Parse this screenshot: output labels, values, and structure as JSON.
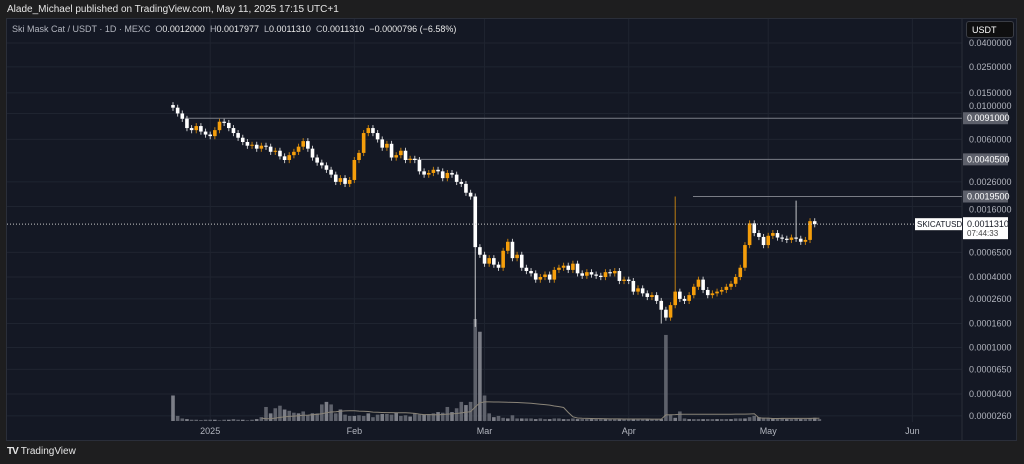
{
  "publisher_line": "Alade_Michael published on TradingView.com, May 11, 2025 17:15 UTC+1",
  "legend": {
    "symbol": "Ski Mask Cat / USDT · 1D · MEXC",
    "o_label": "O",
    "o": "0.0012000",
    "h_label": "H",
    "h": "0.0017977",
    "l_label": "L",
    "l": "0.0011310",
    "c_label": "C",
    "c": "0.0011310",
    "change": "−0.0000796 (−6.58%)"
  },
  "currency_button": "USDT",
  "footer_brand": "TradingView",
  "colors": {
    "up": "#f59e0b",
    "down": "#ffffff",
    "background": "#141824",
    "grid": "#1f2430"
  },
  "chart_data": {
    "type": "candlestick",
    "scale": "log",
    "start_date": "2024-12-24",
    "interval": "1D",
    "closes": [
      0.0112,
      0.01,
      0.009,
      0.0075,
      0.0072,
      0.0078,
      0.007,
      0.0066,
      0.0064,
      0.0072,
      0.0085,
      0.0083,
      0.0075,
      0.0068,
      0.0062,
      0.0057,
      0.0053,
      0.0054,
      0.005,
      0.0053,
      0.0052,
      0.0047,
      0.0048,
      0.0043,
      0.004,
      0.0044,
      0.0047,
      0.0052,
      0.0058,
      0.005,
      0.0042,
      0.0038,
      0.0036,
      0.0033,
      0.003,
      0.0026,
      0.0028,
      0.0025,
      0.0027,
      0.004,
      0.0046,
      0.0068,
      0.0075,
      0.0068,
      0.006,
      0.0051,
      0.0055,
      0.0042,
      0.0044,
      0.0048,
      0.004,
      0.0041,
      0.004,
      0.0032,
      0.003,
      0.0031,
      0.0033,
      0.0032,
      0.0028,
      0.0031,
      0.003,
      0.0026,
      0.0025,
      0.0021,
      0.00195,
      0.00072,
      0.00062,
      0.00052,
      0.00058,
      0.00051,
      0.00048,
      0.00067,
      0.0008,
      0.00058,
      0.00062,
      0.00048,
      0.00045,
      0.00043,
      0.00038,
      0.0004,
      0.00042,
      0.00038,
      0.00046,
      0.00048,
      0.0005,
      0.00046,
      0.00052,
      0.00043,
      0.00041,
      0.00044,
      0.00042,
      0.00041,
      0.0004,
      0.00044,
      0.00043,
      0.00045,
      0.00037,
      0.00038,
      0.00037,
      0.0003,
      0.00032,
      0.00029,
      0.00027,
      0.00028,
      0.00025,
      0.00021,
      0.00018,
      0.00023,
      0.0003,
      0.00026,
      0.00025,
      0.00028,
      0.00033,
      0.00038,
      0.00031,
      0.00028,
      0.00029,
      0.0003,
      0.00031,
      0.00033,
      0.00035,
      0.0004,
      0.00048,
      0.00075,
      0.00115,
      0.00095,
      0.00088,
      0.00075,
      0.0009,
      0.00095,
      0.00087,
      0.00085,
      0.00083,
      0.00087,
      0.00085,
      0.0008,
      0.00083,
      0.0012,
      0.001131
    ],
    "first_open": 0.0118,
    "notable_wicks": [
      {
        "index": 0,
        "high": 0.0125
      },
      {
        "index": 65,
        "low": 0.00015
      },
      {
        "index": 105,
        "low": 0.00016
      },
      {
        "index": 108,
        "high": 0.00195
      },
      {
        "index": 134,
        "high": 0.0017977
      }
    ],
    "volumes": [
      40,
      8,
      4,
      3,
      2,
      2,
      1,
      2,
      2,
      2,
      1,
      2,
      2,
      3,
      2,
      2,
      1,
      2,
      3,
      6,
      22,
      12,
      20,
      24,
      18,
      16,
      13,
      12,
      15,
      9,
      12,
      12,
      26,
      30,
      26,
      12,
      18,
      10,
      8,
      8,
      9,
      8,
      12,
      6,
      10,
      11,
      11,
      10,
      13,
      8,
      9,
      7,
      12,
      10,
      10,
      11,
      12,
      14,
      13,
      22,
      14,
      20,
      30,
      25,
      30,
      160,
      140,
      40,
      12,
      6,
      8,
      5,
      4,
      9,
      4,
      4,
      4,
      4,
      3,
      4,
      3,
      3,
      4,
      4,
      3,
      3,
      4,
      3,
      3,
      3,
      3,
      3,
      3,
      3,
      3,
      3,
      3,
      3,
      3,
      3,
      3,
      3,
      3,
      3,
      3,
      3,
      135,
      10,
      5,
      15,
      4,
      3,
      3,
      3,
      3,
      3,
      3,
      3,
      3,
      3,
      3,
      4,
      4,
      4,
      6,
      8,
      6,
      5,
      4,
      4,
      4,
      4,
      3,
      3,
      4,
      3,
      3,
      4,
      5,
      3
    ],
    "y_ticks": [
      "0.0400000",
      "0.0250000",
      "0.0150000",
      "0.0100000",
      "0.0060000",
      "0.0026000",
      "0.0016000",
      "0.0006500",
      "0.0004000",
      "0.0002600",
      "0.0001600",
      "0.0001000",
      "0.0000650",
      "0.0000400",
      "0.0000260"
    ],
    "x_ticks": [
      {
        "label": "2025",
        "date": "2025-01-01"
      },
      {
        "label": "Feb",
        "date": "2025-02-01"
      },
      {
        "label": "Mar",
        "date": "2025-03-01"
      },
      {
        "label": "Apr",
        "date": "2025-04-01"
      },
      {
        "label": "May",
        "date": "2025-05-01"
      },
      {
        "label": "Jun",
        "date": "2025-06-01"
      }
    ],
    "horizontal_levels": [
      {
        "price": 0.0091,
        "label": "0.0091000"
      },
      {
        "price": 0.00405,
        "label": "0.0040500"
      },
      {
        "price": 0.00195,
        "label": "0.0019500"
      }
    ],
    "last_price": {
      "price": 0.001131,
      "label": "0.0011310",
      "countdown": "07:44:33",
      "symbol_tag": "SKICATUSDT"
    }
  }
}
